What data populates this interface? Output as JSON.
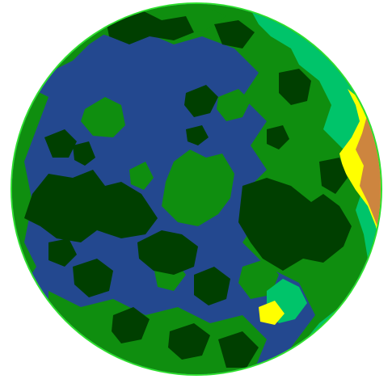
{
  "scene": {
    "subject": "planet-disc",
    "colors": {
      "background": "#ffffff",
      "rim": "#2ee02e",
      "ocean": "#23488f",
      "forest_dark": "#003f00",
      "grassland": "#0f8e0f",
      "shallows": "#00c46a",
      "sand": "#ffff00",
      "desert": "#cd853f"
    },
    "terrain_types": [
      "ocean",
      "forest_dark",
      "grassland",
      "shallows",
      "sand",
      "desert"
    ]
  }
}
